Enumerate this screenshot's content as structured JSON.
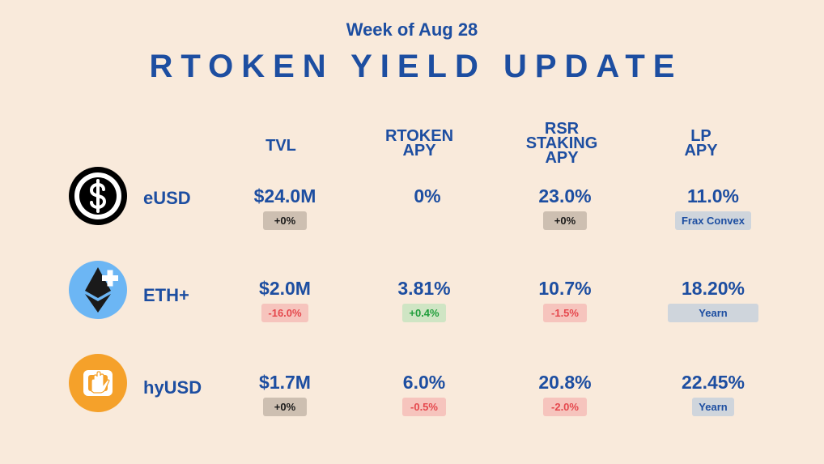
{
  "header": {
    "subtitle": "Week of Aug 28",
    "title": "RTOKEN YIELD UPDATE"
  },
  "columns": {
    "tvl": "TVL",
    "rtoken_apy": [
      "RTOKEN",
      "APY"
    ],
    "rsr_staking_apy": [
      "RSR",
      "STAKING",
      "APY"
    ],
    "lp_apy": [
      "LP",
      "APY"
    ]
  },
  "rows": [
    {
      "name": "eUSD",
      "icon": "dollar-coin-icon",
      "tvl": "$24.0M",
      "tvl_change": "+0%",
      "rtoken_apy": "0%",
      "rtoken_change": "",
      "rsr_apy": "23.0%",
      "rsr_change": "+0%",
      "lp_apy": "11.0%",
      "lp_source": "Frax Convex"
    },
    {
      "name": "ETH+",
      "icon": "ethereum-plus-icon",
      "tvl": "$2.0M",
      "tvl_change": "-16.0%",
      "rtoken_apy": "3.81%",
      "rtoken_change": "+0.4%",
      "rsr_apy": "10.7%",
      "rsr_change": "-1.5%",
      "lp_apy": "18.20%",
      "lp_source": "Yearn"
    },
    {
      "name": "hyUSD",
      "icon": "hyusd-hand-icon",
      "tvl": "$1.7M",
      "tvl_change": "+0%",
      "rtoken_apy": "6.0%",
      "rtoken_change": "-0.5%",
      "rsr_apy": "20.8%",
      "rsr_change": "-2.0%",
      "lp_apy": "22.45%",
      "lp_source": "Yearn"
    }
  ],
  "colors": {
    "background": "#f9eadb",
    "text": "#1d4ea1",
    "negative": "#e5484d",
    "positive": "#1f9d3a"
  }
}
